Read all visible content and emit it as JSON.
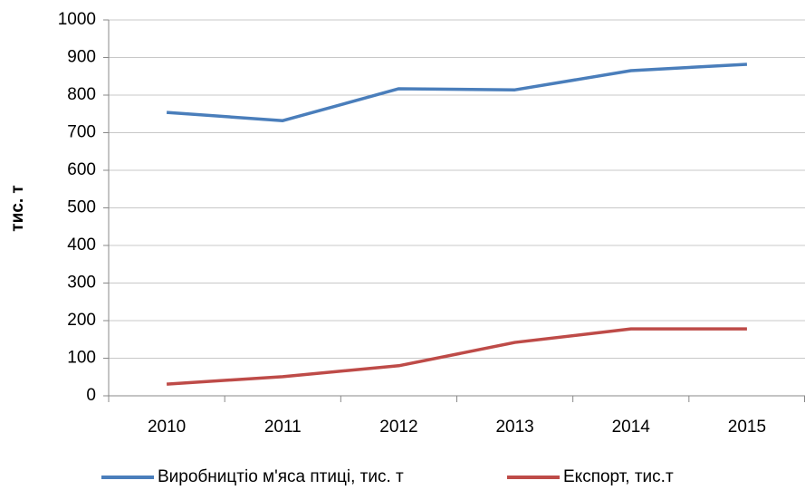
{
  "chart_data": {
    "type": "line",
    "ylabel": "тис. т",
    "categories": [
      "2010",
      "2011",
      "2012",
      "2013",
      "2014",
      "2015"
    ],
    "series": [
      {
        "name": "Виробництіо м'яса птиці, тис. т",
        "color": "#4a7ebb",
        "values": [
          754,
          732,
          817,
          814,
          865,
          882
        ]
      },
      {
        "name": "Експорт, тис.т",
        "color": "#be4b48",
        "values": [
          31,
          51,
          80,
          142,
          178,
          178
        ]
      }
    ],
    "ylim": [
      0,
      1000
    ],
    "yticks": [
      0,
      100,
      200,
      300,
      400,
      500,
      600,
      700,
      800,
      900,
      1000
    ],
    "grid": true,
    "legend": "bottom"
  }
}
